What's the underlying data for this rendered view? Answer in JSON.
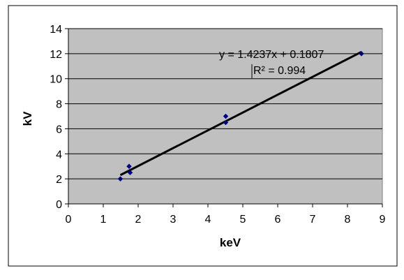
{
  "chart_data": {
    "type": "scatter",
    "xlabel": "keV",
    "ylabel": "kV",
    "xlim": [
      0,
      9
    ],
    "ylim": [
      0,
      14
    ],
    "x_ticks": [
      0,
      1,
      2,
      3,
      4,
      5,
      6,
      7,
      8,
      9
    ],
    "y_ticks": [
      0,
      2,
      4,
      6,
      8,
      10,
      12,
      14
    ],
    "grid": "horizontal",
    "plot_background": "#c0c0c0",
    "marker_color": "#000080",
    "line_color": "#000000",
    "points": [
      {
        "x": 1.49,
        "y": 2.0
      },
      {
        "x": 1.74,
        "y": 3.0
      },
      {
        "x": 1.77,
        "y": 2.5
      },
      {
        "x": 4.51,
        "y": 7.0
      },
      {
        "x": 4.51,
        "y": 6.5
      },
      {
        "x": 8.4,
        "y": 12.0
      }
    ],
    "trendline": {
      "slope": 1.4237,
      "intercept": 0.1807,
      "x_range": [
        1.49,
        8.4
      ],
      "equation": "y = 1.4237x + 0.1807",
      "r_squared": "R² = 0.994"
    }
  }
}
